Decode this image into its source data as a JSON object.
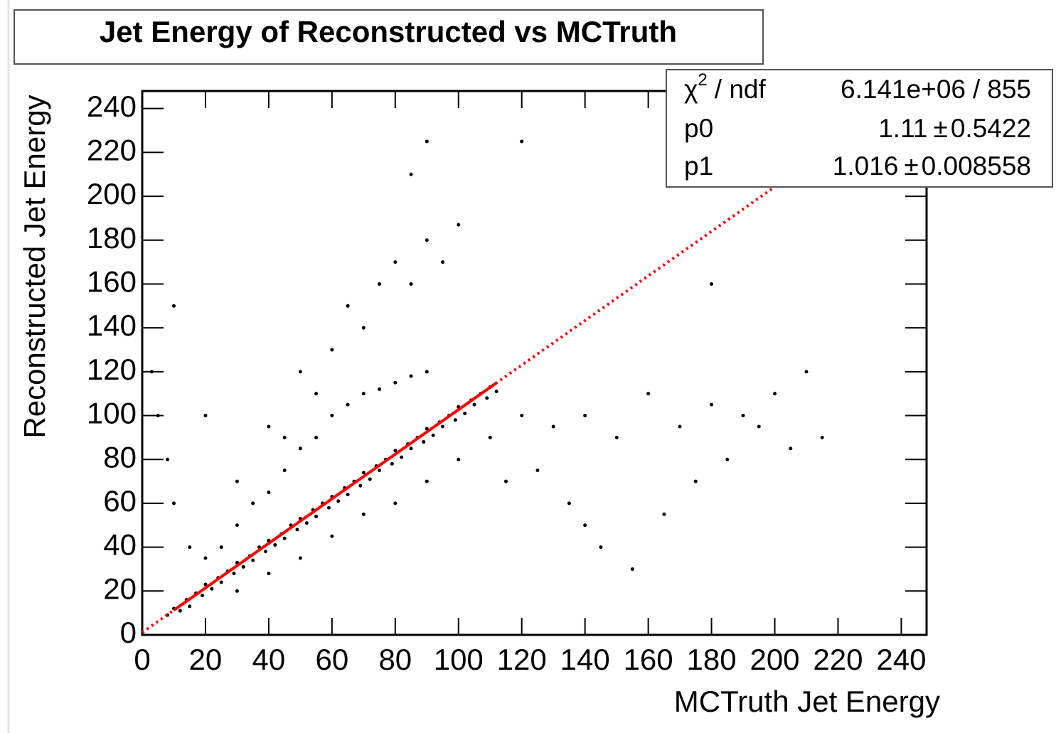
{
  "chart_data": {
    "type": "scatter",
    "title": "Jet Energy of Reconstructed vs MCTruth",
    "x_label": "MCTruth Jet Energy",
    "y_label": "Reconstructed Jet Energy",
    "color": "#000000",
    "xlim": [
      0,
      248
    ],
    "ylim": [
      0,
      248
    ],
    "xticks": [
      0,
      20,
      40,
      60,
      80,
      100,
      120,
      140,
      160,
      180,
      200,
      220,
      240
    ],
    "yticks": [
      0,
      20,
      40,
      60,
      80,
      100,
      120,
      140,
      160,
      180,
      200,
      220,
      240
    ],
    "x": [
      8,
      10,
      12,
      14,
      15,
      17,
      19,
      20,
      22,
      24,
      25,
      27,
      29,
      30,
      32,
      34,
      35,
      37,
      39,
      40,
      42,
      44,
      45,
      47,
      49,
      50,
      52,
      54,
      55,
      57,
      59,
      60,
      62,
      64,
      65,
      67,
      69,
      70,
      72,
      74,
      75,
      77,
      79,
      80,
      82,
      84,
      85,
      87,
      89,
      90,
      92,
      94,
      95,
      97,
      99,
      100,
      102,
      104,
      105,
      107,
      109,
      110,
      112,
      20,
      30,
      35,
      40,
      45,
      50,
      55,
      60,
      65,
      70,
      75,
      80,
      85,
      90,
      25,
      45,
      50,
      60,
      65,
      70,
      75,
      80,
      85,
      90,
      95,
      100,
      55,
      40,
      30,
      15,
      10,
      5,
      3,
      8,
      30,
      40,
      50,
      60,
      70,
      80,
      90,
      100,
      110,
      120,
      130,
      140,
      150,
      160,
      170,
      180,
      190,
      200,
      210,
      215,
      205,
      195,
      185,
      175,
      165,
      155,
      145,
      135,
      125,
      115,
      90,
      85,
      120,
      180,
      140,
      20,
      10
    ],
    "values": [
      9,
      12,
      11,
      16,
      13,
      19,
      18,
      23,
      21,
      26,
      24,
      29,
      28,
      33,
      31,
      36,
      34,
      40,
      38,
      43,
      41,
      46,
      44,
      50,
      48,
      53,
      51,
      57,
      54,
      60,
      58,
      63,
      61,
      67,
      64,
      70,
      68,
      74,
      71,
      77,
      75,
      80,
      78,
      84,
      81,
      87,
      85,
      90,
      88,
      94,
      91,
      97,
      95,
      100,
      98,
      104,
      101,
      107,
      105,
      110,
      108,
      113,
      111,
      35,
      50,
      60,
      65,
      75,
      85,
      90,
      100,
      105,
      110,
      112,
      115,
      118,
      120,
      40,
      90,
      120,
      130,
      150,
      140,
      160,
      170,
      160,
      180,
      170,
      187,
      110,
      95,
      70,
      40,
      60,
      100,
      120,
      80,
      20,
      28,
      35,
      45,
      55,
      60,
      70,
      80,
      90,
      100,
      95,
      100,
      90,
      110,
      95,
      105,
      100,
      110,
      120,
      90,
      85,
      95,
      80,
      70,
      55,
      30,
      40,
      60,
      75,
      70,
      225,
      210,
      225,
      160,
      50,
      100,
      150
    ],
    "fit": {
      "color": "#ff0000",
      "range": [
        10,
        112
      ],
      "chi2_symbol": "χ",
      "chi2_sup": "2",
      "chi2_rest": "/ ndf",
      "chi2": {
        "value": 6141000,
        "label": "6.141e+06"
      },
      "ratio_sep": "/",
      "ndf": 855,
      "pm": "±",
      "p0": {
        "name": "p0",
        "value": 1.11,
        "error": 0.5422
      },
      "p1": {
        "name": "p1",
        "value": 1.016,
        "error": 0.008558
      }
    }
  }
}
